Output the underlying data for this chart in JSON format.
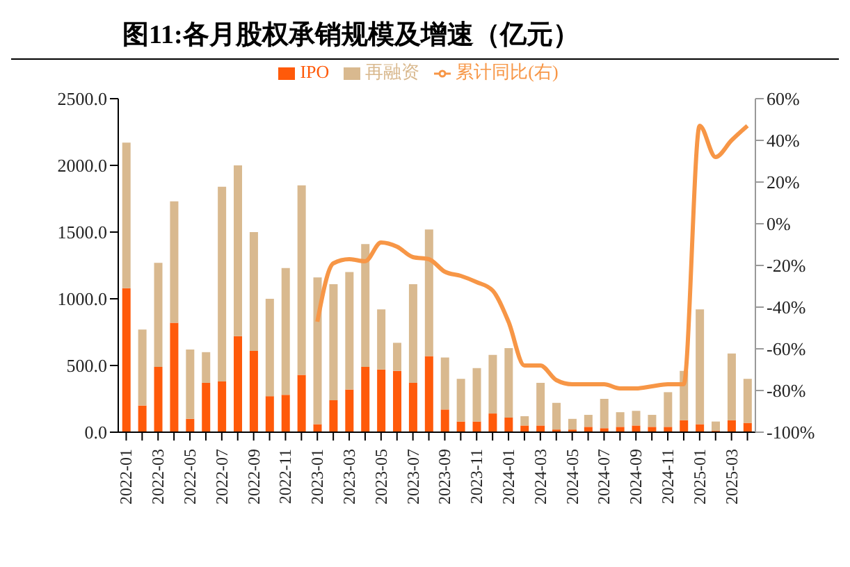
{
  "chart_data": {
    "type": "bar",
    "title": "图11:各月股权承销规模及增速（亿元）",
    "categories": [
      "2022-01",
      null,
      "2022-03",
      null,
      "2022-05",
      null,
      "2022-07",
      null,
      "2022-09",
      null,
      "2022-11",
      null,
      "2023-01",
      null,
      "2023-03",
      null,
      "2023-05",
      null,
      "2023-07",
      null,
      "2023-09",
      null,
      "2023-11",
      null,
      "2024-01",
      null,
      "2024-03",
      null,
      "2024-05",
      null,
      "2024-07",
      null,
      "2024-09",
      null,
      "2024-11",
      null,
      "2025-01",
      null,
      "2025-03",
      null
    ],
    "stacked": true,
    "series": [
      {
        "name": "IPO",
        "color": "#ff5a0a",
        "values": [
          1080,
          200,
          490,
          820,
          100,
          370,
          380,
          720,
          610,
          270,
          280,
          430,
          60,
          240,
          320,
          490,
          470,
          460,
          370,
          570,
          170,
          80,
          80,
          140,
          110,
          50,
          50,
          20,
          20,
          40,
          30,
          40,
          50,
          40,
          40,
          90,
          60,
          10,
          90,
          70
        ]
      },
      {
        "name": "再融资",
        "color": "#d9b98f",
        "values": [
          1090,
          570,
          780,
          910,
          520,
          230,
          1460,
          1280,
          890,
          730,
          950,
          1420,
          1100,
          870,
          880,
          920,
          450,
          210,
          740,
          950,
          390,
          320,
          400,
          440,
          520,
          70,
          320,
          200,
          80,
          90,
          220,
          110,
          110,
          90,
          260,
          370,
          860,
          70,
          500,
          330
        ]
      },
      {
        "name": "累计同比(右)",
        "type": "line",
        "axis": "y2",
        "color": "#f79646",
        "values": [
          null,
          null,
          null,
          null,
          null,
          null,
          null,
          null,
          null,
          null,
          null,
          null,
          -47,
          -19,
          -17,
          -18,
          -9,
          -11,
          -16,
          -17,
          -23,
          -25,
          -28,
          -32,
          -47,
          -68,
          -68,
          -75,
          -77,
          -77,
          -77,
          -79,
          -79,
          -78,
          -77,
          -77,
          47,
          32,
          40,
          47
        ]
      }
    ],
    "ylim": [
      0,
      2500
    ],
    "yticks": [
      {
        "value": 0,
        "label": "0.0"
      },
      {
        "value": 500,
        "label": "500.0"
      },
      {
        "value": 1000,
        "label": "1000.0"
      },
      {
        "value": 1500,
        "label": "1500.0"
      },
      {
        "value": 2000,
        "label": "2000.0"
      },
      {
        "value": 2500,
        "label": "2500.0"
      }
    ],
    "y2lim": [
      -100,
      60
    ],
    "y2ticks": [
      {
        "value": -100,
        "label": "-100%"
      },
      {
        "value": -80,
        "label": "-80%"
      },
      {
        "value": -60,
        "label": "-60%"
      },
      {
        "value": -40,
        "label": "-40%"
      },
      {
        "value": -20,
        "label": "-20%"
      },
      {
        "value": 0,
        "label": "0%"
      },
      {
        "value": 20,
        "label": "20%"
      },
      {
        "value": 40,
        "label": "40%"
      },
      {
        "value": 60,
        "label": "60%"
      }
    ],
    "legend": "top",
    "grid": false,
    "marker": "none"
  }
}
